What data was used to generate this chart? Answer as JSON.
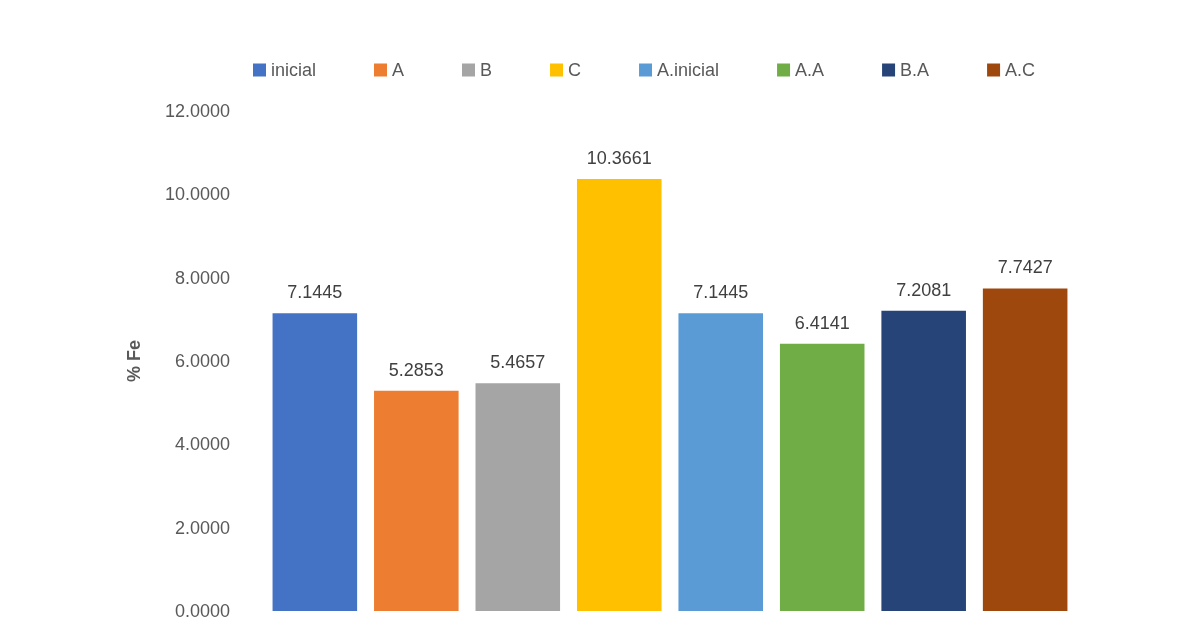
{
  "chart_data": {
    "type": "bar",
    "ylabel": "% Fe",
    "categories": [
      null
    ],
    "series": [
      {
        "name": "inicial",
        "color": "#4472c4",
        "values": [
          7.1445
        ]
      },
      {
        "name": "A",
        "color": "#ed7d31",
        "values": [
          5.2853
        ]
      },
      {
        "name": "B",
        "color": "#a5a5a5",
        "values": [
          5.4657
        ]
      },
      {
        "name": "C",
        "color": "#ffc000",
        "values": [
          10.3661
        ]
      },
      {
        "name": "A.inicial",
        "color": "#5b9bd5",
        "values": [
          7.1445
        ]
      },
      {
        "name": "A.A",
        "color": "#70ad47",
        "values": [
          6.4141
        ]
      },
      {
        "name": "B.A",
        "color": "#264478",
        "values": [
          7.2081
        ]
      },
      {
        "name": "A.C",
        "color": "#9e480e",
        "values": [
          7.7427
        ]
      }
    ],
    "ylim": [
      0,
      12
    ],
    "yticks": [
      {
        "value": 0,
        "label": "0.0000"
      },
      {
        "value": 2,
        "label": "2.0000"
      },
      {
        "value": 4,
        "label": "4.0000"
      },
      {
        "value": 6,
        "label": "6.0000"
      },
      {
        "value": 8,
        "label": "8.0000"
      },
      {
        "value": 10,
        "label": "10.0000"
      },
      {
        "value": 12,
        "label": "12.0000"
      }
    ],
    "grid": false,
    "legend": "top",
    "data_labels": true
  }
}
